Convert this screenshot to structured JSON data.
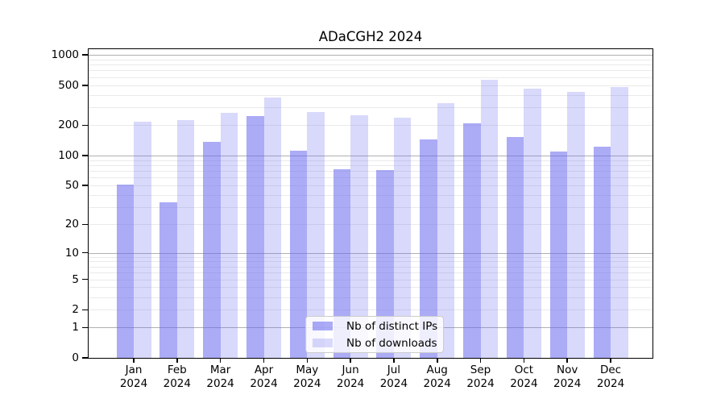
{
  "title": "ADaCGH2 2024",
  "colors": {
    "ips_bar": "rgba(102,102,238,0.55)",
    "downloads_bar": "rgba(102,102,238,0.25)",
    "grid_major": "#b0b0b0",
    "grid_minor": "#eaeaea",
    "axis": "#000000",
    "text": "#000000",
    "legend_border": "#cccccc",
    "legend_background": "rgba(255,255,255,0.8)"
  },
  "chart_data": {
    "type": "bar",
    "title": "ADaCGH2 2024",
    "categories": [
      "Jan",
      "Feb",
      "Mar",
      "Apr",
      "May",
      "Jun",
      "Jul",
      "Aug",
      "Sep",
      "Oct",
      "Nov",
      "Dec"
    ],
    "x_year_label": "2024",
    "series": [
      {
        "name": "Nb of distinct IPs",
        "values": [
          51,
          34,
          138,
          248,
          111,
          73,
          72,
          144,
          210,
          152,
          109,
          122
        ]
      },
      {
        "name": "Nb of downloads",
        "values": [
          217,
          227,
          268,
          379,
          270,
          253,
          239,
          331,
          565,
          466,
          430,
          480
        ]
      }
    ],
    "y_axis": {
      "scale": "log(x+1)",
      "tick_labels": [
        1000,
        500,
        200,
        100,
        50,
        20,
        10,
        5,
        2,
        1,
        0
      ],
      "major_gridlines": [
        1,
        10,
        100,
        1000
      ],
      "minor_gridline_decades": [
        1,
        10,
        100
      ],
      "ylim": [
        0,
        1140
      ]
    },
    "grid": "horizontal",
    "legend_position": "inside-bottom-center"
  }
}
